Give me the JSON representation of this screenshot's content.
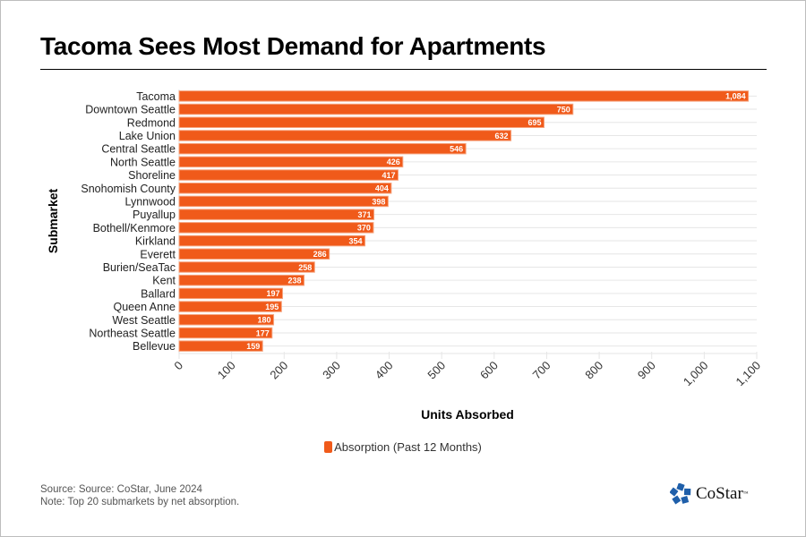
{
  "chart_data": {
    "type": "bar",
    "orientation": "horizontal",
    "title": "Tacoma Sees Most Demand for Apartments",
    "xlabel": "Units Absorbed",
    "ylabel": "Submarket",
    "xlim": [
      0,
      1100
    ],
    "xticks": [
      0,
      100,
      200,
      300,
      400,
      500,
      600,
      700,
      800,
      900,
      1000,
      1100
    ],
    "xtick_labels": [
      "0",
      "100",
      "200",
      "300",
      "400",
      "500",
      "600",
      "700",
      "800",
      "900",
      "1,000",
      "1,100"
    ],
    "grid": true,
    "legend_position": "bottom-center",
    "categories": [
      "Tacoma",
      "Downtown Seattle",
      "Redmond",
      "Lake Union",
      "Central Seattle",
      "North Seattle",
      "Shoreline",
      "Snohomish County",
      "Lynnwood",
      "Puyallup",
      "Bothell/Kenmore",
      "Kirkland",
      "Everett",
      "Burien/SeaTac",
      "Kent",
      "Ballard",
      "Queen Anne",
      "West Seattle",
      "Northeast Seattle",
      "Bellevue"
    ],
    "series": [
      {
        "name": "Absorption (Past 12 Months)",
        "color": "#F05A1A",
        "values": [
          1084,
          750,
          695,
          632,
          546,
          426,
          417,
          404,
          398,
          371,
          370,
          354,
          286,
          258,
          238,
          197,
          195,
          180,
          177,
          159
        ],
        "value_labels": [
          "1,084",
          "750",
          "695",
          "632",
          "546",
          "426",
          "417",
          "404",
          "398",
          "371",
          "370",
          "354",
          "286",
          "258",
          "238",
          "197",
          "195",
          "180",
          "177",
          "159"
        ]
      }
    ]
  },
  "footer": {
    "source": "Source: Source: CoStar, June 2024",
    "note": "Note: Top 20 submarkets by net absorption."
  },
  "logo": {
    "name": "CoStar",
    "mark": "™",
    "color": "#1F5FAA"
  }
}
